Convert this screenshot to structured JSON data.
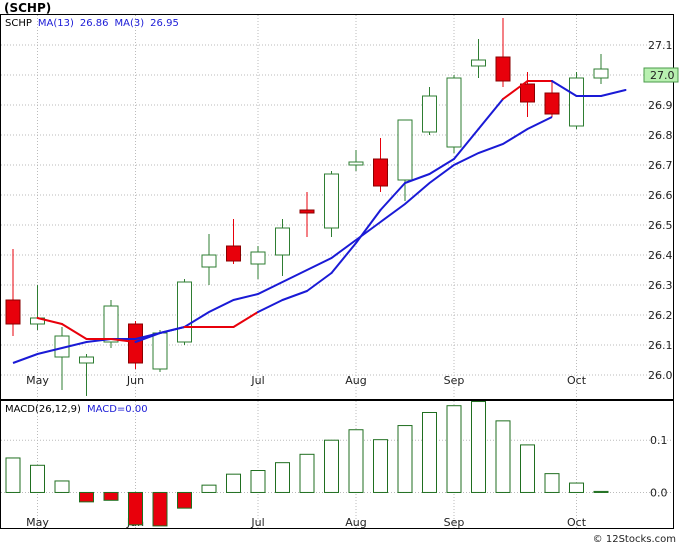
{
  "title": "(SCHP)",
  "price_panel": {
    "legend": [
      {
        "text": "SCHP",
        "color": "#000000"
      },
      {
        "text": "MA(13)",
        "color": "#1a1ad6"
      },
      {
        "text": "26.86",
        "color": "#1a1ad6"
      },
      {
        "text": "MA(3)",
        "color": "#1a1ad6"
      },
      {
        "text": "26.95",
        "color": "#1a1ad6"
      }
    ],
    "last_price_label": "27.0",
    "last_price": 27.0
  },
  "macd_panel": {
    "legend": [
      {
        "text": "MACD(26,12,9)",
        "color": "#000000"
      },
      {
        "text": "MACD=0.00",
        "color": "#1a1ad6"
      }
    ]
  },
  "watermark": "© 12Stocks.com",
  "colors": {
    "up_candle_border": "#2e7d32",
    "down_candle": "#e8000b",
    "ma_line": "#1a1ad6",
    "ma_down_segment": "#e8000b",
    "macd_bar": "#1f6e1f",
    "macd_neg_fill": "#e8000b",
    "grid": "#bbbbbb"
  },
  "chart_data": [
    {
      "type": "candlestick",
      "ylim": [
        25.92,
        27.2
      ],
      "yticks": [
        26.0,
        26.1,
        26.2,
        26.3,
        26.4,
        26.5,
        26.6,
        26.7,
        26.8,
        26.9,
        27.0,
        27.1
      ],
      "month_labels": [
        {
          "label": "May",
          "index": 1
        },
        {
          "label": "Jun",
          "index": 5
        },
        {
          "label": "Jul",
          "index": 10
        },
        {
          "label": "Aug",
          "index": 14
        },
        {
          "label": "Sep",
          "index": 18
        },
        {
          "label": "Oct",
          "index": 23
        }
      ],
      "candles": [
        {
          "o": 26.25,
          "h": 26.42,
          "l": 26.13,
          "c": 26.17
        },
        {
          "o": 26.17,
          "h": 26.3,
          "l": 26.15,
          "c": 26.19
        },
        {
          "o": 26.06,
          "h": 26.16,
          "l": 25.95,
          "c": 26.13
        },
        {
          "o": 26.04,
          "h": 26.07,
          "l": 25.93,
          "c": 26.06
        },
        {
          "o": 26.11,
          "h": 26.25,
          "l": 26.09,
          "c": 26.23
        },
        {
          "o": 26.17,
          "h": 26.18,
          "l": 26.02,
          "c": 26.04
        },
        {
          "o": 26.02,
          "h": 26.15,
          "l": 26.01,
          "c": 26.14
        },
        {
          "o": 26.11,
          "h": 26.32,
          "l": 26.1,
          "c": 26.31
        },
        {
          "o": 26.36,
          "h": 26.47,
          "l": 26.3,
          "c": 26.4
        },
        {
          "o": 26.43,
          "h": 26.52,
          "l": 26.37,
          "c": 26.38
        },
        {
          "o": 26.37,
          "h": 26.43,
          "l": 26.32,
          "c": 26.41
        },
        {
          "o": 26.4,
          "h": 26.52,
          "l": 26.33,
          "c": 26.49
        },
        {
          "o": 26.55,
          "h": 26.61,
          "l": 26.46,
          "c": 26.54
        },
        {
          "o": 26.49,
          "h": 26.68,
          "l": 26.46,
          "c": 26.67
        },
        {
          "o": 26.7,
          "h": 26.75,
          "l": 26.68,
          "c": 26.71
        },
        {
          "o": 26.72,
          "h": 26.79,
          "l": 26.61,
          "c": 26.63
        },
        {
          "o": 26.65,
          "h": 26.85,
          "l": 26.58,
          "c": 26.85
        },
        {
          "o": 26.81,
          "h": 26.96,
          "l": 26.8,
          "c": 26.93
        },
        {
          "o": 26.76,
          "h": 27.0,
          "l": 26.74,
          "c": 26.99
        },
        {
          "o": 27.03,
          "h": 27.12,
          "l": 26.99,
          "c": 27.05
        },
        {
          "o": 27.06,
          "h": 27.19,
          "l": 26.96,
          "c": 26.98
        },
        {
          "o": 26.97,
          "h": 27.01,
          "l": 26.86,
          "c": 26.91
        },
        {
          "o": 26.94,
          "h": 26.98,
          "l": 26.86,
          "c": 26.87
        },
        {
          "o": 26.83,
          "h": 27.01,
          "l": 26.82,
          "c": 26.99
        },
        {
          "o": 26.99,
          "h": 27.07,
          "l": 26.97,
          "c": 27.02
        }
      ],
      "ma3": [
        null,
        26.19,
        26.17,
        26.12,
        26.12,
        26.11,
        26.14,
        26.16,
        26.16,
        26.16,
        26.21,
        26.25,
        26.28,
        26.34,
        26.44,
        26.55,
        26.64,
        26.67,
        26.72,
        26.82,
        26.92,
        26.98,
        26.98,
        26.93,
        26.93,
        26.95
      ],
      "ma3_down_ranges": [
        [
          1,
          5
        ],
        [
          7,
          10
        ],
        [
          20,
          22
        ]
      ],
      "ma13": [
        26.04,
        26.07,
        26.09,
        26.11,
        26.12,
        26.12,
        26.14,
        26.16,
        26.21,
        26.25,
        26.27,
        26.31,
        26.35,
        26.39,
        26.45,
        26.51,
        26.57,
        26.64,
        26.7,
        26.74,
        26.77,
        26.82,
        26.86
      ]
    },
    {
      "type": "bar",
      "series_name": "MACD(26,12,9)",
      "ylim": [
        -0.068,
        0.175
      ],
      "yticks": [
        0.0,
        0.1
      ],
      "values": [
        0.066,
        0.052,
        0.022,
        -0.018,
        -0.015,
        -0.062,
        -0.064,
        -0.03,
        0.014,
        0.035,
        0.042,
        0.057,
        0.073,
        0.1,
        0.12,
        0.101,
        0.128,
        0.153,
        0.166,
        0.174,
        0.137,
        0.091,
        0.036,
        0.018,
        0.002
      ]
    }
  ]
}
